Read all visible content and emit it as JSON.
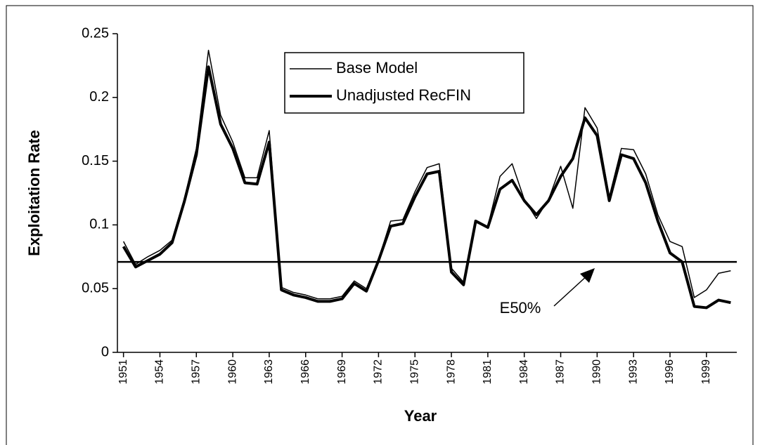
{
  "chart_data": {
    "type": "line",
    "ylabel": "Exploitation Rate",
    "xlabel": "Year",
    "x": [
      1951,
      1952,
      1953,
      1954,
      1955,
      1956,
      1957,
      1958,
      1959,
      1960,
      1961,
      1962,
      1963,
      1964,
      1965,
      1966,
      1967,
      1968,
      1969,
      1970,
      1971,
      1972,
      1973,
      1974,
      1975,
      1976,
      1977,
      1978,
      1979,
      1980,
      1981,
      1982,
      1983,
      1984,
      1985,
      1986,
      1987,
      1988,
      1989,
      1990,
      1991,
      1992,
      1993,
      1994,
      1995,
      1996,
      1997,
      1998,
      1999,
      2000,
      2001
    ],
    "series": [
      {
        "name": "Base Model",
        "color": "#000000",
        "width": 1.5,
        "values": [
          0.087,
          0.069,
          0.075,
          0.08,
          0.088,
          0.12,
          0.16,
          0.237,
          0.186,
          0.165,
          0.137,
          0.137,
          0.174,
          0.051,
          0.047,
          0.045,
          0.042,
          0.042,
          0.044,
          0.056,
          0.05,
          0.073,
          0.103,
          0.104,
          0.126,
          0.145,
          0.148,
          0.066,
          0.055,
          0.102,
          0.099,
          0.138,
          0.148,
          0.12,
          0.105,
          0.12,
          0.146,
          0.113,
          0.192,
          0.176,
          0.122,
          0.16,
          0.159,
          0.14,
          0.108,
          0.087,
          0.083,
          0.043,
          0.049,
          0.062,
          0.064
        ]
      },
      {
        "name": "Unadjusted RecFIN",
        "color": "#000000",
        "width": 4,
        "values": [
          0.083,
          0.067,
          0.072,
          0.077,
          0.086,
          0.118,
          0.155,
          0.224,
          0.179,
          0.16,
          0.133,
          0.132,
          0.165,
          0.049,
          0.045,
          0.043,
          0.04,
          0.04,
          0.042,
          0.054,
          0.048,
          0.072,
          0.099,
          0.101,
          0.122,
          0.14,
          0.142,
          0.063,
          0.053,
          0.103,
          0.098,
          0.128,
          0.135,
          0.119,
          0.108,
          0.119,
          0.138,
          0.152,
          0.184,
          0.17,
          0.119,
          0.155,
          0.152,
          0.133,
          0.103,
          0.078,
          0.071,
          0.036,
          0.035,
          0.041,
          0.039
        ]
      }
    ],
    "reference_line": {
      "value": 0.071,
      "label": "E50%"
    },
    "xlim": [
      1950.5,
      2001.5
    ],
    "xticks": [
      1951,
      1954,
      1957,
      1960,
      1963,
      1966,
      1969,
      1972,
      1975,
      1978,
      1981,
      1984,
      1987,
      1990,
      1993,
      1996,
      1999
    ],
    "ylim": [
      0,
      0.25
    ],
    "yticks": [
      0,
      0.05,
      0.1,
      0.15,
      0.2,
      0.25
    ],
    "grid": false,
    "legend": "top-center"
  }
}
